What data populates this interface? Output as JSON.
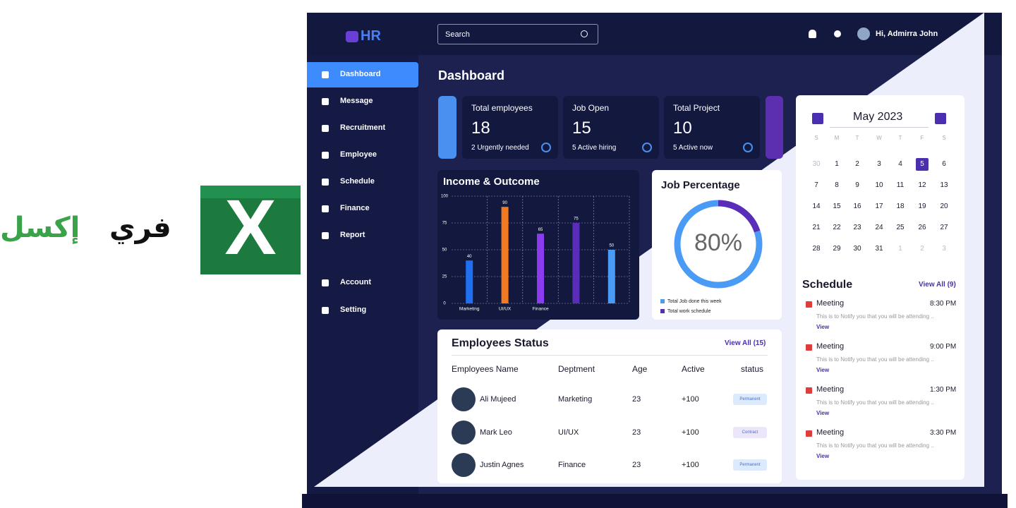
{
  "brand": {
    "word1": "فري",
    "word2": "إكسل",
    "logo": "X"
  },
  "app": {
    "logo": "HR",
    "search": "Search",
    "greeting": "Hi, Admirra John"
  },
  "nav": [
    "Dashboard",
    "Message",
    "Recruitment",
    "Employee",
    "Schedule",
    "Finance",
    "Report",
    "Account",
    "Setting"
  ],
  "page_title": "Dashboard",
  "stats": [
    {
      "label": "Total employees",
      "value": 18,
      "note": "2 Urgently needed"
    },
    {
      "label": "Job Open",
      "value": 15,
      "note": "5 Active hiring"
    },
    {
      "label": "Total Project",
      "value": 10,
      "note": "5 Active now"
    }
  ],
  "chart_data": [
    {
      "type": "bar",
      "title": "Income & Outcome",
      "categories": [
        "Marketing",
        "UI/UX",
        "Finance",
        null,
        null
      ],
      "values": [
        40,
        90,
        65,
        75,
        50
      ],
      "colors": [
        "#1f6ff0",
        "#f47a20",
        "#8b3bf0",
        "#5a2db8",
        "#4a9bf5"
      ],
      "ylim": [
        0,
        100
      ],
      "yticks": [
        0,
        25,
        50,
        75,
        100
      ],
      "grid": true
    },
    {
      "type": "donut",
      "title": "Job Percentage",
      "center_label": "80%",
      "categories": [
        "Total Job done this week",
        "Total work schedule"
      ],
      "values": [
        80,
        20
      ],
      "colors": [
        "#4a9bf5",
        "#5a2db8"
      ]
    }
  ],
  "employees": {
    "title": "Employees Status",
    "view_all": "View All (15)",
    "columns": [
      "Employees Name",
      "Deptment",
      "Age",
      "Active",
      "status"
    ],
    "rows": [
      [
        "Ali Mujeed",
        "Marketing",
        23,
        "+100",
        "Permanent"
      ],
      [
        "Mark Leo",
        "UI/UX",
        23,
        "+100",
        "Contract"
      ],
      [
        "Justin Agnes",
        "Finance",
        23,
        "+100",
        "Permanent"
      ]
    ]
  },
  "calendar": {
    "month": "May 2023",
    "selected": 5,
    "weekdays": [
      "S",
      "M",
      "T",
      "W",
      "T",
      "F",
      "S"
    ],
    "weeks": [
      [
        30,
        1,
        2,
        3,
        4,
        5,
        6
      ],
      [
        7,
        8,
        9,
        10,
        11,
        12,
        13
      ],
      [
        14,
        15,
        16,
        17,
        18,
        19,
        20
      ],
      [
        21,
        22,
        23,
        24,
        25,
        26,
        27
      ],
      [
        28,
        29,
        30,
        31,
        1,
        2,
        3
      ]
    ]
  },
  "schedule": {
    "title": "Schedule",
    "view_all": "View All (9)",
    "items": [
      {
        "title": "Meeting",
        "time": "8:30 PM",
        "text": "This is to Notify you that you will be attending ..",
        "link": "View"
      },
      {
        "title": "Meeting",
        "time": "9:00 PM",
        "text": "This is to Notify you that you will be attending ..",
        "link": "View"
      },
      {
        "title": "Meeting",
        "time": "1:30 PM",
        "text": "This is to Notify you that you will be attending ..",
        "link": "View"
      },
      {
        "title": "Meeting",
        "time": "3:30 PM",
        "text": "This is to Notify you that you will be attending ..",
        "link": "View"
      }
    ]
  }
}
